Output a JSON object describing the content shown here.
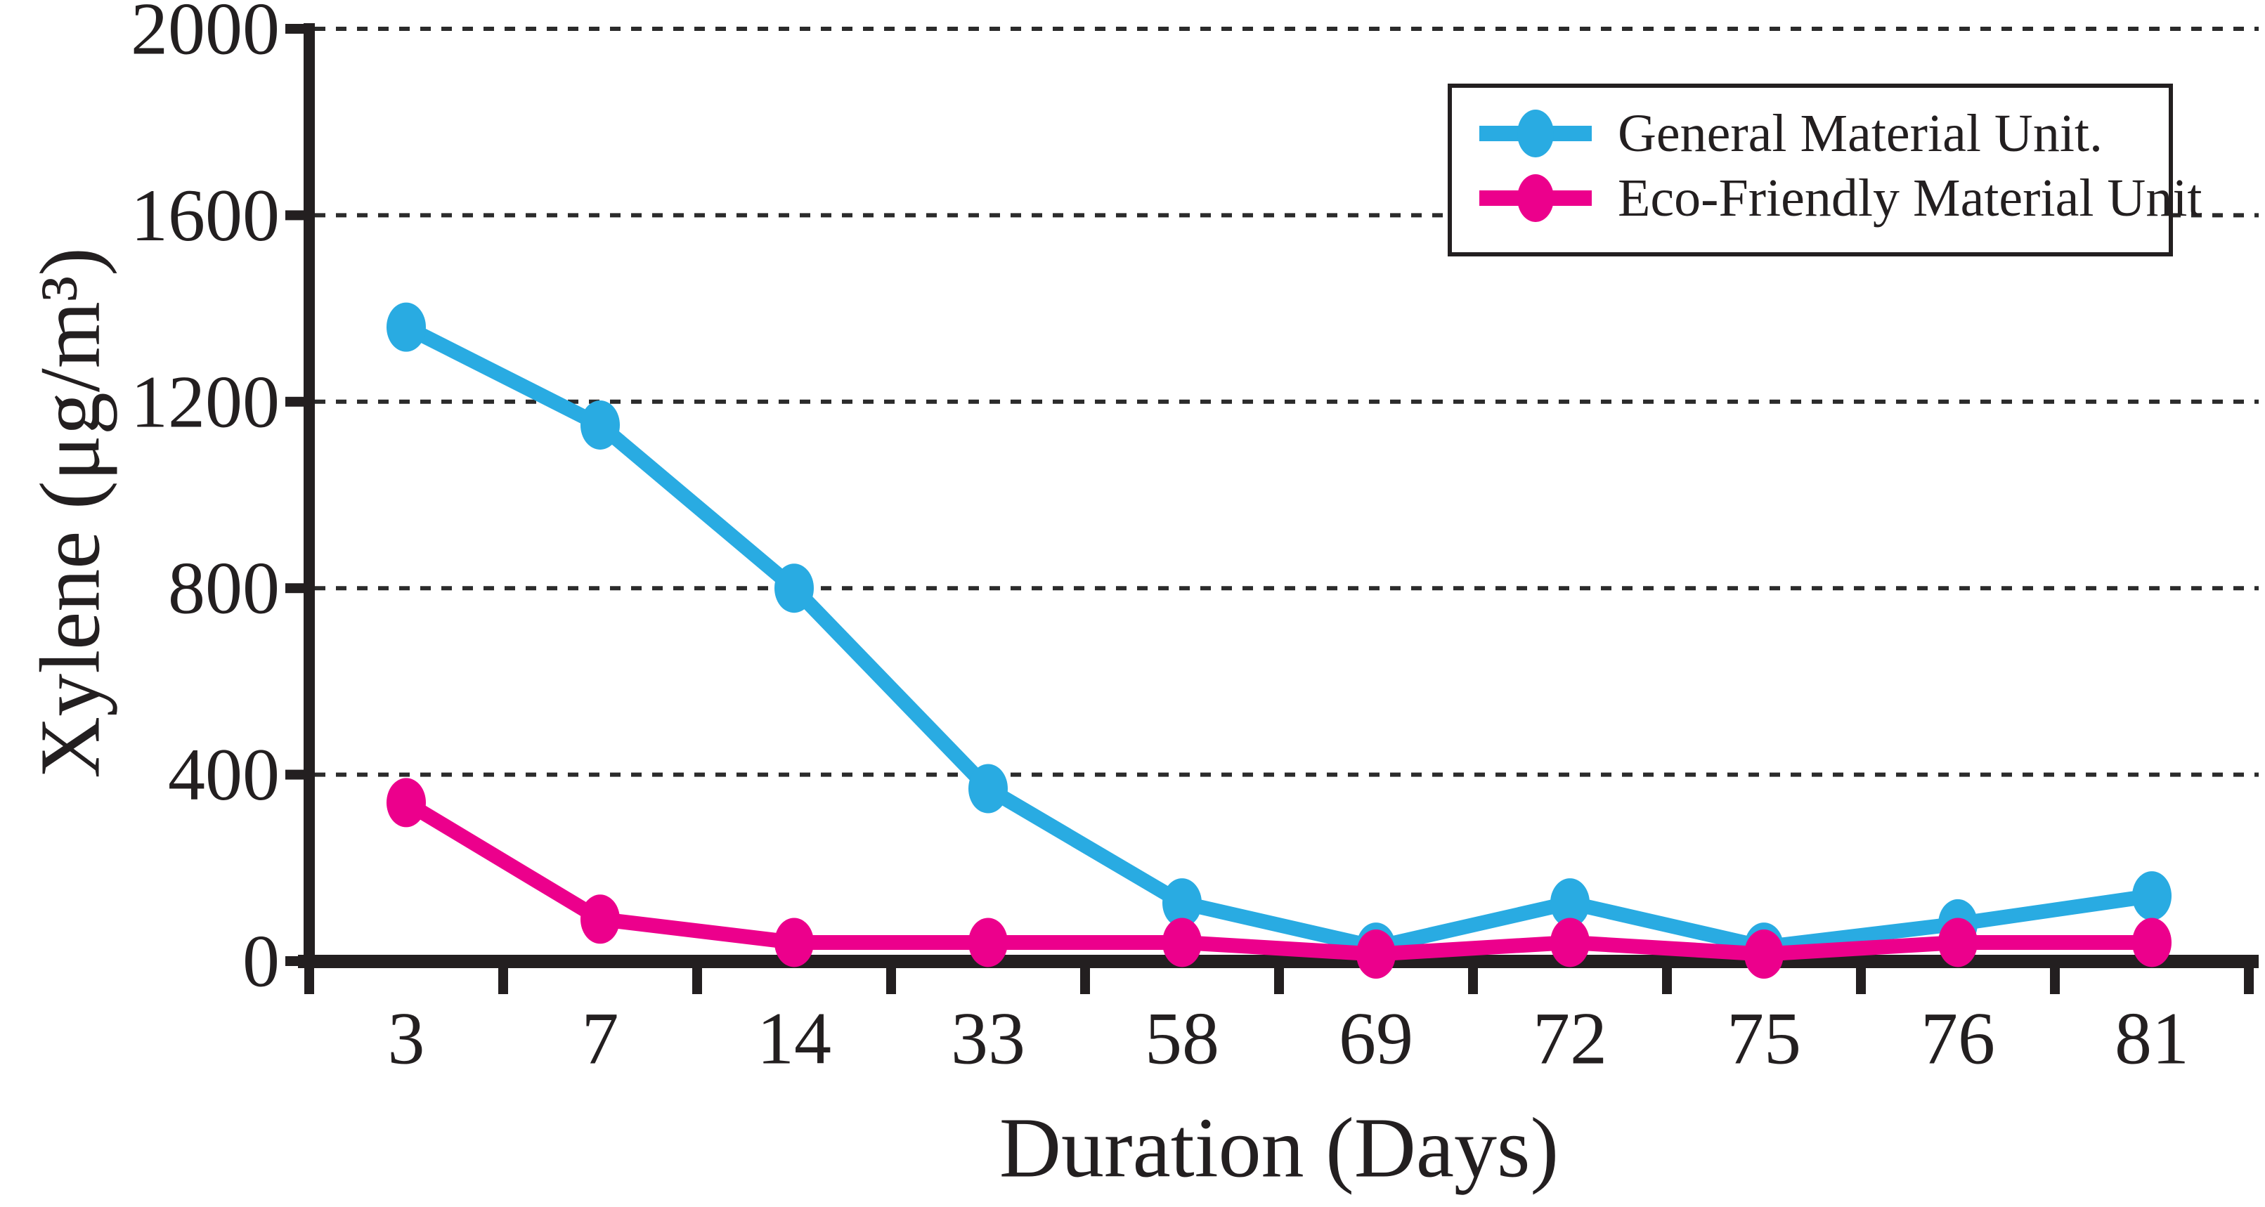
{
  "chart_data": {
    "type": "line",
    "title": "",
    "xlabel": "Duration (Days)",
    "ylabel": "Xylene (μg/m³)",
    "categories": [
      "3",
      "7",
      "14",
      "33",
      "58",
      "69",
      "72",
      "75",
      "76",
      "81"
    ],
    "yticks": [
      0,
      400,
      800,
      1200,
      1600,
      2000
    ],
    "ylim": [
      0,
      2000
    ],
    "grid": "dashed-horizontal-black",
    "legend_position": "top-right",
    "series": [
      {
        "name": "General Material Unit.",
        "color": "#29ABE2",
        "marker": "ellipse",
        "values": [
          1360,
          1150,
          800,
          370,
          125,
          30,
          125,
          30,
          80,
          140
        ]
      },
      {
        "name": "Eco-Friendly Material Unit",
        "color": "#EC008C",
        "marker": "ellipse",
        "values": [
          340,
          90,
          40,
          40,
          40,
          15,
          40,
          15,
          40,
          40
        ]
      }
    ],
    "colors": {
      "axis": "#231F20",
      "background": "#FFFFFF"
    }
  }
}
